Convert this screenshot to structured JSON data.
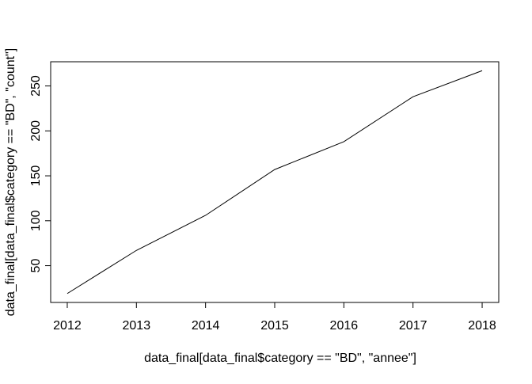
{
  "chart_data": {
    "type": "line",
    "title": "",
    "xlabel": "data_final[data_final$category == \"BD\", \"annee\"]",
    "ylabel": "data_final[data_final$category == \"BD\", \"count\"]",
    "x": [
      2012,
      2013,
      2014,
      2015,
      2016,
      2017,
      2018
    ],
    "series": [
      {
        "values": [
          19,
          67,
          106,
          157,
          188,
          238,
          267
        ]
      }
    ],
    "xlim": [
      2011.76,
      2018.24
    ],
    "ylim": [
      9.08,
      276.92
    ],
    "x_ticks": [
      2012,
      2013,
      2014,
      2015,
      2016,
      2017,
      2018
    ],
    "y_ticks": [
      50,
      100,
      150,
      200,
      250
    ],
    "grid": false,
    "legend": "none",
    "line_color": "#000000",
    "axis_color": "#000000",
    "background": "#ffffff"
  }
}
